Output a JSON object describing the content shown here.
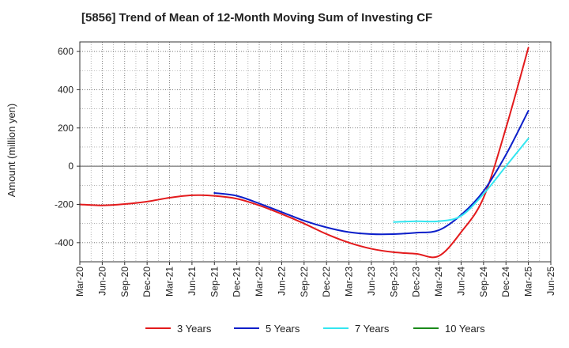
{
  "chart_data": {
    "type": "line",
    "title": "[5856]  Trend of Mean of 12-Month Moving Sum of Investing CF",
    "xlabel": "",
    "ylabel": "Amount (million yen)",
    "ylim": [
      -500,
      650
    ],
    "yticks": [
      -400,
      -200,
      0,
      200,
      400,
      600
    ],
    "grid": true,
    "legend_position": "bottom",
    "categories": [
      "Mar-20",
      "Jun-20",
      "Sep-20",
      "Dec-20",
      "Mar-21",
      "Jun-21",
      "Sep-21",
      "Dec-21",
      "Mar-22",
      "Jun-22",
      "Sep-22",
      "Dec-22",
      "Mar-23",
      "Jun-23",
      "Sep-23",
      "Dec-23",
      "Mar-24",
      "Jun-24",
      "Sep-24",
      "Dec-24",
      "Mar-25",
      "Jun-25"
    ],
    "series": [
      {
        "name": "3 Years",
        "color": "#e31a1c",
        "values": [
          -200,
          -205,
          -198,
          -185,
          -165,
          -152,
          -155,
          -170,
          -205,
          -250,
          -300,
          -355,
          -400,
          -432,
          -450,
          -458,
          -470,
          -345,
          -165,
          200,
          620,
          null
        ]
      },
      {
        "name": "5 Years",
        "color": "#0b1ec9",
        "values": [
          null,
          null,
          null,
          null,
          null,
          null,
          -140,
          -155,
          -195,
          -240,
          -285,
          -320,
          -345,
          -355,
          -355,
          -348,
          -335,
          -255,
          -130,
          60,
          290,
          null
        ]
      },
      {
        "name": "7 Years",
        "color": "#33e6f0",
        "values": [
          null,
          null,
          null,
          null,
          null,
          null,
          null,
          null,
          null,
          null,
          null,
          null,
          null,
          null,
          -292,
          -288,
          -288,
          -260,
          -145,
          0,
          145,
          null
        ]
      },
      {
        "name": "10 Years",
        "color": "#1a8a1a",
        "values": [
          null,
          null,
          null,
          null,
          null,
          null,
          null,
          null,
          null,
          null,
          null,
          null,
          null,
          null,
          null,
          null,
          null,
          null,
          null,
          null,
          null,
          null
        ]
      }
    ]
  }
}
